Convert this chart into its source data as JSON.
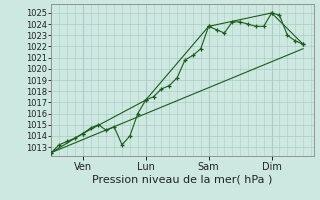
{
  "bg_color": "#cce8e0",
  "grid_color": "#aaccc4",
  "line_color": "#1a5c1a",
  "marker_color": "#1a5c1a",
  "xlabel": "Pression niveau de la mer( hPa )",
  "xlabel_fontsize": 8,
  "ytick_fontsize": 6,
  "xtick_fontsize": 7,
  "yticks": [
    1013,
    1014,
    1015,
    1016,
    1017,
    1018,
    1019,
    1020,
    1021,
    1022,
    1023,
    1024,
    1025
  ],
  "ylim": [
    1012.2,
    1025.8
  ],
  "xlim": [
    0,
    100
  ],
  "xtick_positions": [
    12,
    36,
    60,
    84
  ],
  "xtick_labels": [
    "Ven",
    "Lun",
    "Sam",
    "Dim"
  ],
  "series1_x": [
    0,
    3,
    6,
    9,
    12,
    15,
    18,
    21,
    24,
    27,
    30,
    33,
    36,
    39,
    42,
    45,
    48,
    51,
    54,
    57,
    60,
    63,
    66,
    69,
    72,
    75,
    78,
    81,
    84,
    87,
    90,
    93,
    96
  ],
  "series1_y": [
    1012.5,
    1013.2,
    1013.5,
    1013.8,
    1014.2,
    1014.7,
    1015.0,
    1014.5,
    1014.8,
    1013.2,
    1014.0,
    1016.0,
    1017.2,
    1017.5,
    1018.2,
    1018.5,
    1019.2,
    1020.8,
    1021.2,
    1021.8,
    1023.8,
    1023.5,
    1023.2,
    1024.2,
    1024.2,
    1024.0,
    1023.8,
    1023.8,
    1025.0,
    1024.8,
    1023.0,
    1022.5,
    1022.2
  ],
  "series2_x": [
    0,
    12,
    36,
    60,
    84,
    96
  ],
  "series2_y": [
    1012.5,
    1014.2,
    1017.2,
    1023.8,
    1025.0,
    1022.2
  ],
  "series3_x": [
    0,
    96
  ],
  "series3_y": [
    1012.5,
    1021.8
  ]
}
